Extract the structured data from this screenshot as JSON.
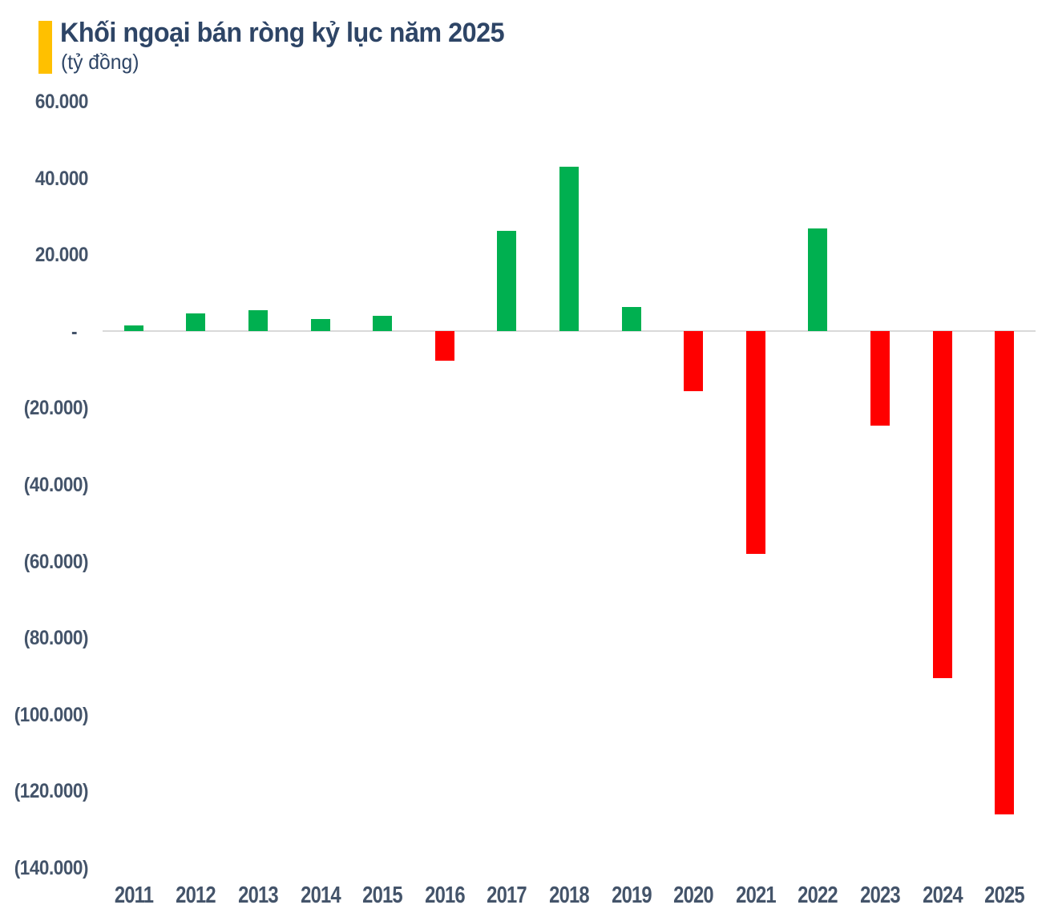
{
  "header": {
    "title": "Khối ngoại bán ròng kỷ lục năm 2025",
    "unit": "(tỷ đồng)"
  },
  "colors": {
    "positive": "#00B050",
    "negative": "#FF0000",
    "accent": "#FFC000",
    "title_text": "#2E4566",
    "axis_text": "#44546A",
    "axis_line": "#D9D9D9"
  },
  "chart_data": {
    "type": "bar",
    "title": "Khối ngoại bán ròng kỷ lục năm 2025",
    "subtitle": "(tỷ đồng)",
    "xlabel": "",
    "ylabel": "tỷ đồng",
    "categories": [
      "2011",
      "2012",
      "2013",
      "2014",
      "2015",
      "2016",
      "2017",
      "2018",
      "2019",
      "2020",
      "2021",
      "2022",
      "2023",
      "2024",
      "2025"
    ],
    "values": [
      1700,
      4800,
      5700,
      3300,
      4200,
      -7500,
      26400,
      43100,
      6500,
      -15500,
      -58000,
      27000,
      -24500,
      -90500,
      -126000
    ],
    "ylim": [
      -140000,
      60000
    ],
    "y_ticks": [
      {
        "value": 60000,
        "label": "60.000"
      },
      {
        "value": 40000,
        "label": "40.000"
      },
      {
        "value": 20000,
        "label": "20.000"
      },
      {
        "value": 0,
        "label": "-"
      },
      {
        "value": -20000,
        "label": "(20.000)"
      },
      {
        "value": -40000,
        "label": "(40.000)"
      },
      {
        "value": -60000,
        "label": "(60.000)"
      },
      {
        "value": -80000,
        "label": "(80.000)"
      },
      {
        "value": -100000,
        "label": "(100.000)"
      },
      {
        "value": -120000,
        "label": "(120.000)"
      },
      {
        "value": -140000,
        "label": "(140.000)"
      }
    ],
    "grid": false,
    "legend": null,
    "positive_color": "#00B050",
    "negative_color": "#FF0000"
  }
}
